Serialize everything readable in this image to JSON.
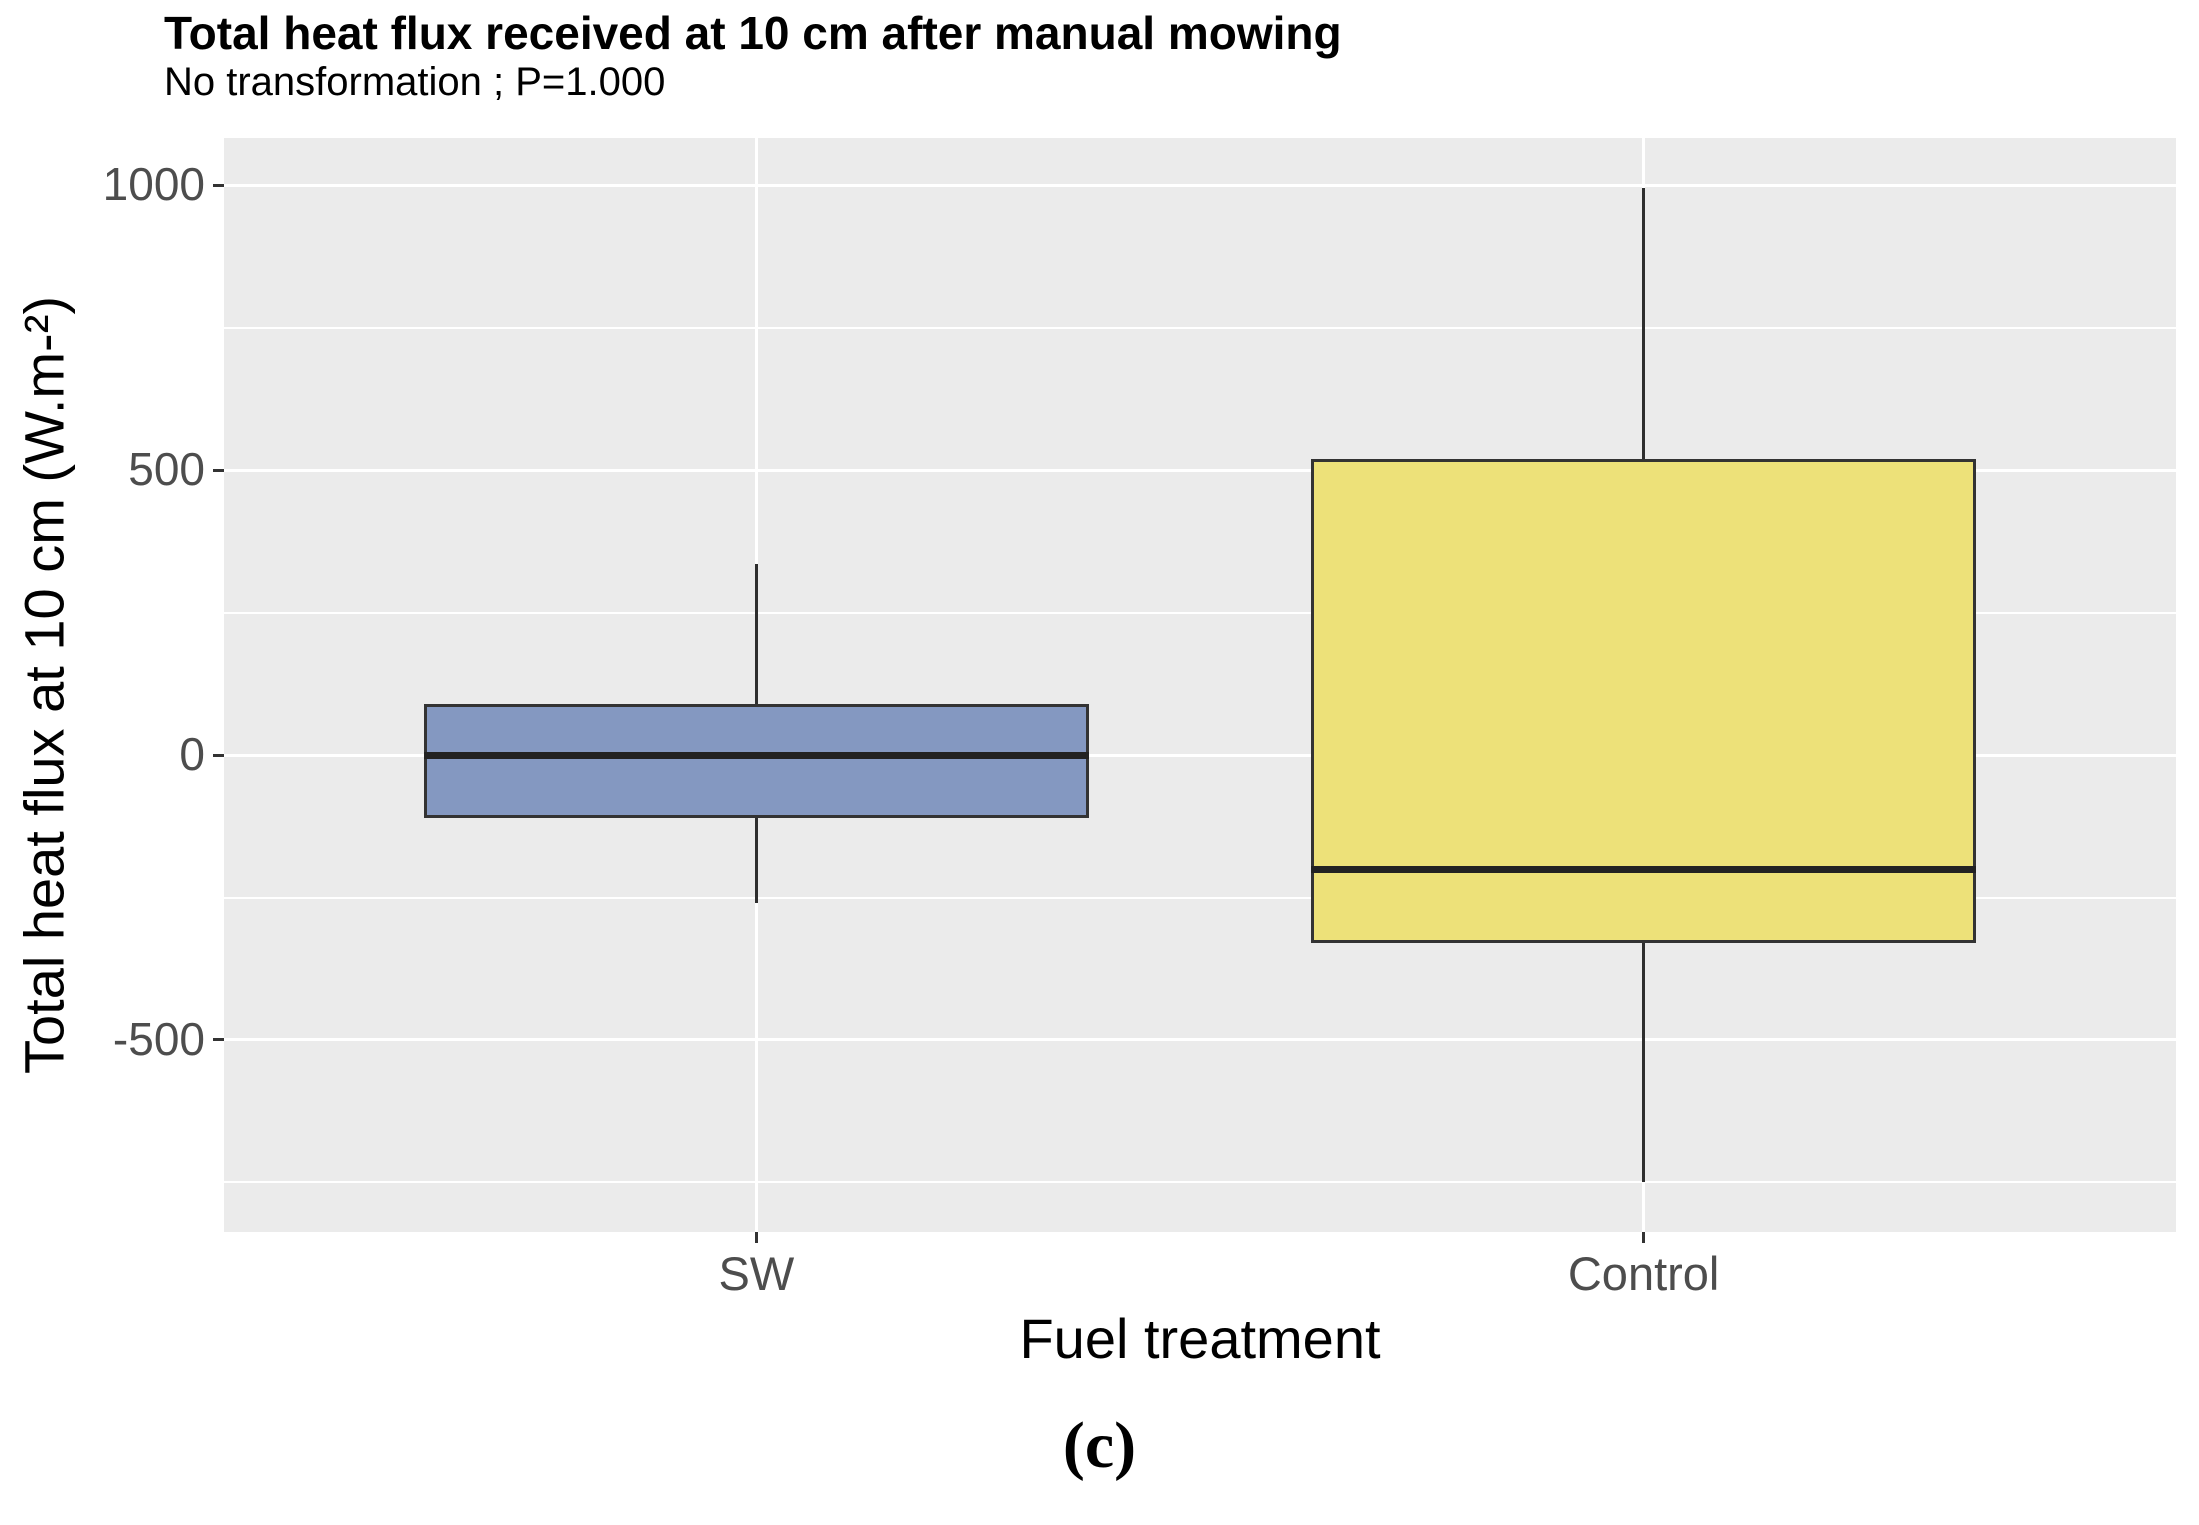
{
  "footer_label": "(c)",
  "chart_data": {
    "type": "boxplot",
    "title": "Total heat flux received at 10 cm after manual mowing",
    "subtitle": "No transformation ; P=1.000",
    "xlabel": "Fuel treatment",
    "ylabel": "Total heat flux at 10 cm (W.m-²)",
    "categories": [
      "SW",
      "Control"
    ],
    "series": [
      {
        "name": "SW",
        "min": -260,
        "q1": -110,
        "median": 0,
        "q3": 90,
        "max": 335,
        "fill": "#8498C1"
      },
      {
        "name": "Control",
        "min": -750,
        "q1": -330,
        "median": -200,
        "q3": 520,
        "max": 995,
        "fill": "#EDE179"
      }
    ],
    "ylim": [
      -837,
      1083
    ],
    "y_major_ticks": [
      1000,
      500,
      0,
      -500
    ],
    "y_minor_ticks": [
      750,
      250,
      -250,
      -750
    ],
    "grid": true,
    "legend": "none",
    "colors": {
      "panel_background": "#EBEBEB",
      "gridline": "#FFFFFF",
      "box_border": "#333333",
      "median_line": "#222222",
      "tick_text": "#4D4D4D",
      "tick_mark": "#333333",
      "title_text": "#000000"
    }
  }
}
